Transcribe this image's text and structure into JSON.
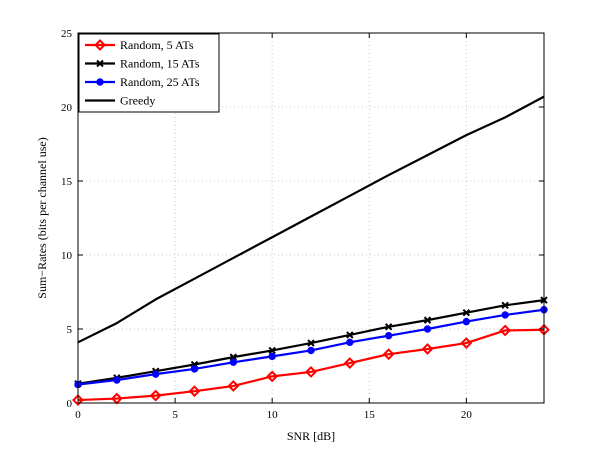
{
  "chart_data": {
    "type": "line",
    "title": "",
    "xlabel": "SNR [dB]",
    "ylabel": "Sum−Rates (bits per channel use)",
    "xlim": [
      0,
      24
    ],
    "ylim": [
      0,
      25
    ],
    "xticks": [
      "0",
      "5",
      "10",
      "15",
      "20"
    ],
    "yticks": [
      "0",
      "5",
      "10",
      "15",
      "20",
      "25"
    ],
    "xtick_values": [
      0,
      5,
      10,
      15,
      20
    ],
    "ytick_values": [
      0,
      5,
      10,
      15,
      20,
      25
    ],
    "grid": true,
    "legend_position": "top-left",
    "x": [
      0,
      2,
      4,
      6,
      8,
      10,
      12,
      14,
      16,
      18,
      20,
      22,
      24
    ],
    "series": [
      {
        "name": "Random, 5 ATs",
        "color": "#ff0000",
        "marker": "diamond",
        "values": [
          0.2,
          0.3,
          0.5,
          0.8,
          1.15,
          1.8,
          2.1,
          2.7,
          3.3,
          3.65,
          4.05,
          4.9,
          4.95
        ]
      },
      {
        "name": "Random, 15 ATs",
        "color": "#000000",
        "marker": "x",
        "values": [
          1.3,
          1.7,
          2.15,
          2.6,
          3.1,
          3.55,
          4.05,
          4.6,
          5.15,
          5.6,
          6.1,
          6.6,
          6.95
        ]
      },
      {
        "name": "Random, 25 ATs",
        "color": "#0000ff",
        "marker": "circle",
        "values": [
          1.25,
          1.55,
          1.95,
          2.3,
          2.75,
          3.15,
          3.55,
          4.1,
          4.55,
          5.0,
          5.5,
          5.95,
          6.3
        ]
      },
      {
        "name": "Greedy",
        "color": "#000000",
        "marker": "none",
        "values": [
          4.1,
          5.4,
          7.0,
          8.4,
          9.8,
          11.2,
          12.6,
          14.0,
          15.4,
          16.75,
          18.1,
          19.3,
          20.7
        ]
      }
    ]
  }
}
